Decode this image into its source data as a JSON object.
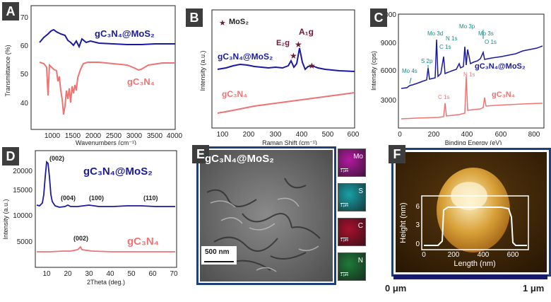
{
  "panels": {
    "A": {
      "letter": "A",
      "ylabel": "Transmittance (%)",
      "xlabel": "Wavenumbers (cm⁻¹)",
      "yticks": [
        "40",
        "50",
        "60",
        "70"
      ],
      "xticks": [
        "1000",
        "1500",
        "2000",
        "2500",
        "3000",
        "3500",
        "4000"
      ],
      "s1": "gC₃N₄@MoS₂",
      "s2": "gC₃N₄"
    },
    "B": {
      "letter": "B",
      "ylabel": "Intensity (a.u.)",
      "xlabel": "Raman Shift (cm⁻¹)",
      "xticks": [
        "100",
        "200",
        "300",
        "400",
        "500",
        "600"
      ],
      "legend": "MoS₂",
      "p1": "E₂g",
      "p2": "A₁g",
      "s1": "gC₃N₄@MoS₂",
      "s2": "gC₃N₄"
    },
    "C": {
      "letter": "C",
      "ylabel": "Intensity (cps)",
      "xlabel": "Binding Energy (eV)",
      "yticks": [
        "3000",
        "6000",
        "9000",
        "12000"
      ],
      "xticks": [
        "0",
        "200",
        "400",
        "600",
        "800"
      ],
      "labels": [
        "Mo 4s",
        "S 2p",
        "Mo 3d",
        "C 1s",
        "N 1s",
        "Mo 3p",
        "Mo 3s",
        "O 1s"
      ],
      "labels2": [
        "C 1s",
        "N 1s"
      ],
      "s1": "gC₃N₄@MoS₂",
      "s2": "gC₃N₄"
    },
    "D": {
      "letter": "D",
      "ylabel": "Intensity (a.u.)",
      "xlabel": "2Theta (deg.)",
      "yticks": [
        "5000",
        "10000",
        "15000",
        "20000"
      ],
      "xticks": [
        "10",
        "20",
        "30",
        "40",
        "50",
        "60",
        "70"
      ],
      "peaks": [
        "(002)",
        "(004)",
        "(100)",
        "(110)"
      ],
      "peak2": "(002)",
      "s1": "gC₃N₄@MoS₂",
      "s2": "gC₃N₄"
    },
    "E": {
      "letter": "E",
      "title": "gC₃N₄@MoS₂",
      "scale": "500 nm",
      "maps": [
        {
          "el": "Mo",
          "sb": "1 μm",
          "color": "#b31aa0"
        },
        {
          "el": "S",
          "sb": "1 μm",
          "color": "#1aa0a8"
        },
        {
          "el": "C",
          "sb": "1 μm",
          "color": "#a8102e"
        },
        {
          "el": "N",
          "sb": "1 μm",
          "color": "#1f7a3a"
        }
      ]
    },
    "F": {
      "letter": "F",
      "ylabel": "Height (nm)",
      "xlabel": "Length (nm)",
      "yticks": [
        "0",
        "3",
        "6"
      ],
      "xticks": [
        "0",
        "200",
        "400",
        "600"
      ],
      "bar_left": "0 μm",
      "bar_right": "1 μm"
    }
  },
  "colors": {
    "blue": "#1a1aa0",
    "red": "#f07373",
    "dark": "#6b1a3a",
    "teal": "#1a8a8a",
    "letterbg": "#3d3d3d",
    "frame": "#1f3f7a"
  }
}
